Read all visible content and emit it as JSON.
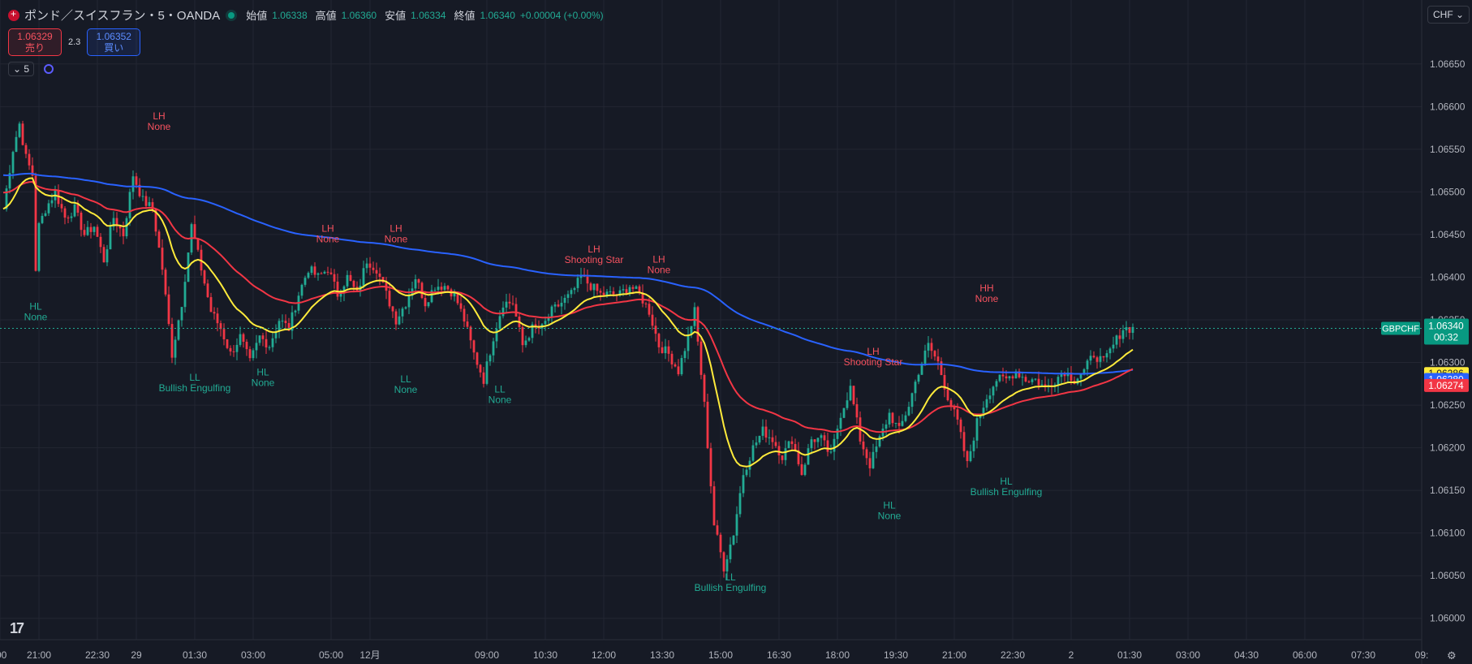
{
  "header": {
    "symbol": "ポンド／スイスフラン・5・OANDA",
    "open_label": "始値",
    "open": "1.06338",
    "high_label": "高値",
    "high": "1.06360",
    "low_label": "安値",
    "low": "1.06334",
    "close_label": "終値",
    "close": "1.06340",
    "change": "+0.00004 (+0.00%)"
  },
  "trade": {
    "sell_price": "1.06329",
    "sell_label": "売り",
    "spread": "2.3",
    "buy_price": "1.06352",
    "buy_label": "買い"
  },
  "interval": "5",
  "currency": "CHF",
  "colors": {
    "bg": "#161a25",
    "grid": "#232632",
    "up": "#22ab94",
    "down": "#f23645",
    "ema_fast": "#ffeb3b",
    "ema_mid": "#f23645",
    "ema_slow": "#2962ff",
    "text": "#b2b5be"
  },
  "chart_data": {
    "type": "candlestick",
    "symbol_label": "GBPCHF",
    "last_price": "1.06340",
    "countdown": "00:32",
    "ylim": [
      1.05975,
      1.06725
    ],
    "y_ticks": [
      "1.06650",
      "1.06600",
      "1.06550",
      "1.06500",
      "1.06450",
      "1.06400",
      "1.06350",
      "1.06300",
      "1.06250",
      "1.06200",
      "1.06150",
      "1.06100",
      "1.06050",
      "1.06000"
    ],
    "x_ticks": [
      {
        "label": ":00",
        "t": -1
      },
      {
        "label": "21:00",
        "t": 11
      },
      {
        "label": "22:30",
        "t": 29
      },
      {
        "label": "29",
        "t": 41
      },
      {
        "label": "01:30",
        "t": 59
      },
      {
        "label": "03:00",
        "t": 77
      },
      {
        "label": "05:00",
        "t": 101
      },
      {
        "label": "12月",
        "t": 113
      },
      {
        "label": "09:00",
        "t": 149
      },
      {
        "label": "10:30",
        "t": 167
      },
      {
        "label": "12:00",
        "t": 185
      },
      {
        "label": "13:30",
        "t": 203
      },
      {
        "label": "15:00",
        "t": 221
      },
      {
        "label": "16:30",
        "t": 239
      },
      {
        "label": "18:00",
        "t": 257
      },
      {
        "label": "19:30",
        "t": 275
      },
      {
        "label": "21:00",
        "t": 293
      },
      {
        "label": "22:30",
        "t": 311
      },
      {
        "label": "2",
        "t": 329
      },
      {
        "label": "01:30",
        "t": 347
      },
      {
        "label": "03:00",
        "t": 365
      },
      {
        "label": "04:30",
        "t": 383
      },
      {
        "label": "06:00",
        "t": 401
      },
      {
        "label": "07:30",
        "t": 419
      },
      {
        "label": "09:",
        "t": 437
      }
    ],
    "x_range": [
      -1,
      437
    ],
    "ema_values": [
      {
        "value": "1.06286",
        "color": "#ffeb3b"
      },
      {
        "value": "1.06280",
        "color": "#2962ff"
      },
      {
        "value": "1.06274",
        "color": "#f23645"
      }
    ],
    "anchors": [
      [
        0,
        1.0648
      ],
      [
        3,
        1.0655
      ],
      [
        5,
        1.0658
      ],
      [
        7,
        1.0654
      ],
      [
        9,
        1.0652
      ],
      [
        10,
        1.0641
      ],
      [
        11,
        1.0646
      ],
      [
        13,
        1.0648
      ],
      [
        16,
        1.065
      ],
      [
        19,
        1.0647
      ],
      [
        22,
        1.0648
      ],
      [
        25,
        1.0645
      ],
      [
        28,
        1.0646
      ],
      [
        31,
        1.0642
      ],
      [
        34,
        1.0647
      ],
      [
        37,
        1.0645
      ],
      [
        40,
        1.0652
      ],
      [
        43,
        1.0649
      ],
      [
        46,
        1.0648
      ],
      [
        49,
        1.0641
      ],
      [
        52,
        1.0631
      ],
      [
        55,
        1.0637
      ],
      [
        58,
        1.0646
      ],
      [
        61,
        1.0641
      ],
      [
        64,
        1.0636
      ],
      [
        67,
        1.0634
      ],
      [
        70,
        1.0631
      ],
      [
        73,
        1.0633
      ],
      [
        76,
        1.063
      ],
      [
        79,
        1.0633
      ],
      [
        82,
        1.0632
      ],
      [
        85,
        1.0635
      ],
      [
        88,
        1.0634
      ],
      [
        91,
        1.0638
      ],
      [
        94,
        1.0641
      ],
      [
        97,
        1.064
      ],
      [
        100,
        1.0641
      ],
      [
        103,
        1.0638
      ],
      [
        106,
        1.064
      ],
      [
        109,
        1.0638
      ],
      [
        112,
        1.0642
      ],
      [
        115,
        1.0641
      ],
      [
        118,
        1.0638
      ],
      [
        121,
        1.0635
      ],
      [
        124,
        1.0637
      ],
      [
        127,
        1.064
      ],
      [
        130,
        1.0637
      ],
      [
        133,
        1.0639
      ],
      [
        136,
        1.0639
      ],
      [
        139,
        1.0638
      ],
      [
        142,
        1.0635
      ],
      [
        145,
        1.0631
      ],
      [
        148,
        1.0628
      ],
      [
        151,
        1.0633
      ],
      [
        154,
        1.0637
      ],
      [
        157,
        1.0637
      ],
      [
        160,
        1.0632
      ],
      [
        163,
        1.0634
      ],
      [
        166,
        1.0634
      ],
      [
        169,
        1.0636
      ],
      [
        172,
        1.0637
      ],
      [
        175,
        1.0638
      ],
      [
        178,
        1.064
      ],
      [
        181,
        1.0639
      ],
      [
        184,
        1.0638
      ],
      [
        187,
        1.0638
      ],
      [
        190,
        1.0638
      ],
      [
        193,
        1.0639
      ],
      [
        196,
        1.0638
      ],
      [
        199,
        1.0636
      ],
      [
        202,
        1.0632
      ],
      [
        205,
        1.0631
      ],
      [
        208,
        1.0629
      ],
      [
        211,
        1.0633
      ],
      [
        213,
        1.0636
      ],
      [
        216,
        1.0625
      ],
      [
        219,
        1.0611
      ],
      [
        222,
        1.0606
      ],
      [
        225,
        1.061
      ],
      [
        228,
        1.0617
      ],
      [
        231,
        1.062
      ],
      [
        234,
        1.0622
      ],
      [
        237,
        1.0621
      ],
      [
        240,
        1.0619
      ],
      [
        243,
        1.0621
      ],
      [
        246,
        1.0617
      ],
      [
        249,
        1.0621
      ],
      [
        252,
        1.0621
      ],
      [
        255,
        1.0619
      ],
      [
        258,
        1.0624
      ],
      [
        261,
        1.0627
      ],
      [
        264,
        1.0621
      ],
      [
        267,
        1.0618
      ],
      [
        270,
        1.0621
      ],
      [
        273,
        1.0624
      ],
      [
        276,
        1.0622
      ],
      [
        279,
        1.0625
      ],
      [
        282,
        1.0629
      ],
      [
        285,
        1.0632
      ],
      [
        288,
        1.063
      ],
      [
        291,
        1.0626
      ],
      [
        294,
        1.0623
      ],
      [
        297,
        1.0618
      ],
      [
        300,
        1.0623
      ],
      [
        303,
        1.0626
      ],
      [
        306,
        1.0628
      ],
      [
        309,
        1.0628
      ],
      [
        312,
        1.0629
      ],
      [
        315,
        1.0628
      ],
      [
        318,
        1.0628
      ],
      [
        321,
        1.0627
      ],
      [
        324,
        1.0628
      ],
      [
        327,
        1.0629
      ],
      [
        330,
        1.0628
      ],
      [
        333,
        1.0629
      ],
      [
        336,
        1.0631
      ],
      [
        339,
        1.063
      ],
      [
        342,
        1.0632
      ],
      [
        345,
        1.0634
      ],
      [
        348,
        1.0634
      ]
    ],
    "labels": [
      {
        "t": 10,
        "price": 1.06375,
        "kind": "HL",
        "pattern": "None",
        "pos": "below"
      },
      {
        "t": 48,
        "price": 1.06568,
        "kind": "LH",
        "pattern": "None",
        "pos": "above"
      },
      {
        "t": 59,
        "price": 1.06292,
        "kind": "LL",
        "pattern": "Bullish Engulfing",
        "pos": "below"
      },
      {
        "t": 80,
        "price": 1.06298,
        "kind": "HL",
        "pattern": "None",
        "pos": "below"
      },
      {
        "t": 100,
        "price": 1.06436,
        "kind": "LH",
        "pattern": "None",
        "pos": "above"
      },
      {
        "t": 121,
        "price": 1.06436,
        "kind": "LH",
        "pattern": "None",
        "pos": "above"
      },
      {
        "t": 124,
        "price": 1.0629,
        "kind": "LL",
        "pattern": "None",
        "pos": "below"
      },
      {
        "t": 153,
        "price": 1.06278,
        "kind": "LL",
        "pattern": "None",
        "pos": "below"
      },
      {
        "t": 182,
        "price": 1.06412,
        "kind": "LH",
        "pattern": "Shooting Star",
        "pos": "above"
      },
      {
        "t": 202,
        "price": 1.064,
        "kind": "LH",
        "pattern": "None",
        "pos": "above"
      },
      {
        "t": 224,
        "price": 1.06058,
        "kind": "LL",
        "pattern": "Bullish Engulfing",
        "pos": "below"
      },
      {
        "t": 268,
        "price": 1.06292,
        "kind": "LH",
        "pattern": "Shooting Star",
        "pos": "above"
      },
      {
        "t": 273,
        "price": 1.06142,
        "kind": "HL",
        "pattern": "None",
        "pos": "below"
      },
      {
        "t": 303,
        "price": 1.06366,
        "kind": "HH",
        "pattern": "None",
        "pos": "above"
      },
      {
        "t": 309,
        "price": 1.0617,
        "kind": "HL",
        "pattern": "Bullish Engulfing",
        "pos": "below"
      }
    ]
  }
}
